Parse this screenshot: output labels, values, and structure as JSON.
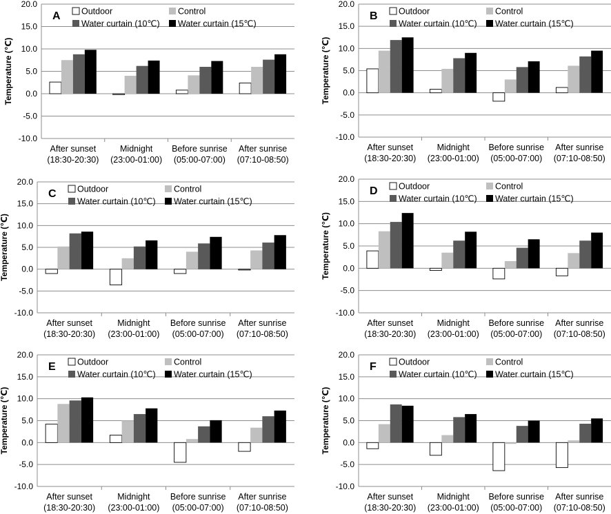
{
  "series_colors": [
    "#ffffff",
    "#bfbfbf",
    "#595959",
    "#000000"
  ],
  "chart_data": [
    {
      "type": "bar",
      "panel_label": "A",
      "ylabel": "Temperature (℃)",
      "ylim": [
        -10,
        20
      ],
      "yticks": [
        "20.0",
        "15.0",
        "10.0",
        "5.0",
        "0.0",
        "-5.0",
        "-10.0"
      ],
      "grid": true,
      "legend": "top",
      "categories": [
        [
          "After sunset",
          "(18:30-20:30)"
        ],
        [
          "Midnight",
          "(23:00-01:00)"
        ],
        [
          "Before sunrise",
          "(05:00-07:00)"
        ],
        [
          "After sunrise",
          "(07:10-08:50)"
        ]
      ],
      "series": [
        {
          "name": "Outdoor",
          "values": [
            2.6,
            -0.2,
            0.8,
            2.4
          ]
        },
        {
          "name": "Control",
          "values": [
            7.5,
            4.0,
            4.1,
            6.0
          ]
        },
        {
          "name": "Water curtain (10℃)",
          "values": [
            8.8,
            6.2,
            6.0,
            7.6
          ]
        },
        {
          "name": "Water curtain (15℃)",
          "values": [
            9.8,
            7.4,
            7.3,
            8.8
          ]
        }
      ]
    },
    {
      "type": "bar",
      "panel_label": "B",
      "ylabel": "Temperature (℃)",
      "ylim": [
        -10,
        20
      ],
      "yticks": [
        "20.0",
        "15.0",
        "10.0",
        "5.0",
        "0.0",
        "-5.0",
        "-10.0"
      ],
      "grid": true,
      "legend": "top",
      "categories": [
        [
          "After sunset",
          "(18:30-20:30)"
        ],
        [
          "Midnight",
          "(23:00-01:00)"
        ],
        [
          "Before sunrise",
          "(05:00-07:00)"
        ],
        [
          "After sunrise",
          "(07:10-08:50)"
        ]
      ],
      "series": [
        {
          "name": "Outdoor",
          "values": [
            5.4,
            0.8,
            -1.9,
            1.2
          ]
        },
        {
          "name": "Control",
          "values": [
            9.5,
            5.4,
            3.0,
            6.1
          ]
        },
        {
          "name": "Water curtain (10℃)",
          "values": [
            11.9,
            7.8,
            5.8,
            8.2
          ]
        },
        {
          "name": "Water curtain (15℃)",
          "values": [
            12.5,
            9.0,
            7.1,
            9.5
          ]
        }
      ]
    },
    {
      "type": "bar",
      "panel_label": "C",
      "ylabel": "Temperature (℃)",
      "ylim": [
        -10,
        20
      ],
      "yticks": [
        "20.0",
        "15.0",
        "10.0",
        "5.0",
        "0.0",
        "-5.0",
        "-10.0"
      ],
      "grid": true,
      "legend": "top",
      "categories": [
        [
          "After sunset",
          "(18:30-20:30)"
        ],
        [
          "Midnight",
          "(23:00-01:00)"
        ],
        [
          "Before sunrise",
          "(05:00-07:00)"
        ],
        [
          "After sunrise",
          "(07:10-08:50)"
        ]
      ],
      "series": [
        {
          "name": "Outdoor",
          "values": [
            -1.0,
            -3.6,
            -1.0,
            -0.2
          ]
        },
        {
          "name": "Control",
          "values": [
            5.2,
            2.5,
            4.0,
            4.3
          ]
        },
        {
          "name": "Water curtain (10℃)",
          "values": [
            8.2,
            5.2,
            5.9,
            6.1
          ]
        },
        {
          "name": "Water curtain (15℃)",
          "values": [
            8.6,
            6.6,
            7.4,
            7.8
          ]
        }
      ]
    },
    {
      "type": "bar",
      "panel_label": "D",
      "ylabel": "Temperature (℃)",
      "ylim": [
        -10,
        20
      ],
      "yticks": [
        "20.0",
        "15.0",
        "10.0",
        "5.0",
        "0.0",
        "-5.0",
        "-10.0"
      ],
      "grid": true,
      "legend": "top",
      "categories": [
        [
          "After sunset",
          "(18:30-20:30)"
        ],
        [
          "Midnight",
          "(23:00-01:00)"
        ],
        [
          "Before sunrise",
          "(05:00-07:00)"
        ],
        [
          "After sunrise",
          "(07:10-08:50)"
        ]
      ],
      "series": [
        {
          "name": "Outdoor",
          "values": [
            3.9,
            -0.5,
            -2.4,
            -1.7
          ]
        },
        {
          "name": "Control",
          "values": [
            8.3,
            3.5,
            1.6,
            3.4
          ]
        },
        {
          "name": "Water curtain (10℃)",
          "values": [
            10.4,
            6.2,
            4.6,
            6.2
          ]
        },
        {
          "name": "Water curtain (15℃)",
          "values": [
            12.4,
            8.2,
            6.5,
            8.0
          ]
        }
      ]
    },
    {
      "type": "bar",
      "panel_label": "E",
      "ylabel": "Temperature (℃)",
      "ylim": [
        -10,
        20
      ],
      "yticks": [
        "20.0",
        "15.0",
        "10.0",
        "5.0",
        "0.0",
        "-5.0",
        "-10.0"
      ],
      "grid": true,
      "legend": "top",
      "categories": [
        [
          "After sunset",
          "(18:30-20:30)"
        ],
        [
          "Midnight",
          "(23:00-01:00)"
        ],
        [
          "Before sunrise",
          "(05:00-07:00)"
        ],
        [
          "After sunrise",
          "(07:10-08:50)"
        ]
      ],
      "series": [
        {
          "name": "Outdoor",
          "values": [
            4.2,
            1.7,
            -4.5,
            -2.0
          ]
        },
        {
          "name": "Control",
          "values": [
            8.8,
            5.0,
            0.8,
            3.4
          ]
        },
        {
          "name": "Water curtain (10℃)",
          "values": [
            9.6,
            6.5,
            3.7,
            6.0
          ]
        },
        {
          "name": "Water curtain (15℃)",
          "values": [
            10.3,
            7.8,
            5.1,
            7.3
          ]
        }
      ]
    },
    {
      "type": "bar",
      "panel_label": "F",
      "ylabel": "Temperature (℃)",
      "ylim": [
        -10,
        20
      ],
      "yticks": [
        "20.0",
        "15.0",
        "10.0",
        "5.0",
        "0.0",
        "-5.0",
        "-10.0"
      ],
      "grid": true,
      "legend": "top",
      "categories": [
        [
          "After sunset",
          "(18:30-20:30)"
        ],
        [
          "Midnight",
          "(23:00-01:00)"
        ],
        [
          "Before sunrise",
          "(05:00-07:00)"
        ],
        [
          "After sunrise",
          "(07:10-08:50)"
        ]
      ],
      "series": [
        {
          "name": "Outdoor",
          "values": [
            -1.4,
            -2.9,
            -6.4,
            -5.7
          ]
        },
        {
          "name": "Control",
          "values": [
            4.2,
            1.7,
            -0.3,
            0.5
          ]
        },
        {
          "name": "Water curtain (10℃)",
          "values": [
            8.7,
            5.8,
            3.8,
            4.3
          ]
        },
        {
          "name": "Water curtain (15℃)",
          "values": [
            8.4,
            6.5,
            5.0,
            5.5
          ]
        }
      ]
    }
  ]
}
